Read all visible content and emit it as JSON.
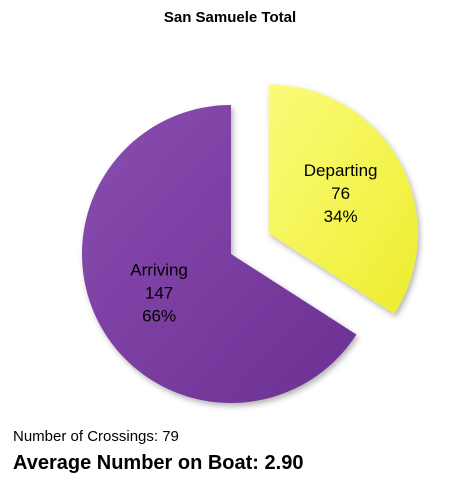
{
  "chart_data": {
    "type": "pie",
    "title": "San Samuele Total",
    "slices": [
      {
        "label": "Departing",
        "value": 76,
        "percent": "34%",
        "color": "#f6f640",
        "exploded": true
      },
      {
        "label": "Arriving",
        "value": 147,
        "percent": "66%",
        "color": "#7d3fa3",
        "exploded": false
      }
    ]
  },
  "footer": {
    "crossings": "Number of Crossings: 79",
    "average": "Average Number on Boat: 2.90"
  }
}
